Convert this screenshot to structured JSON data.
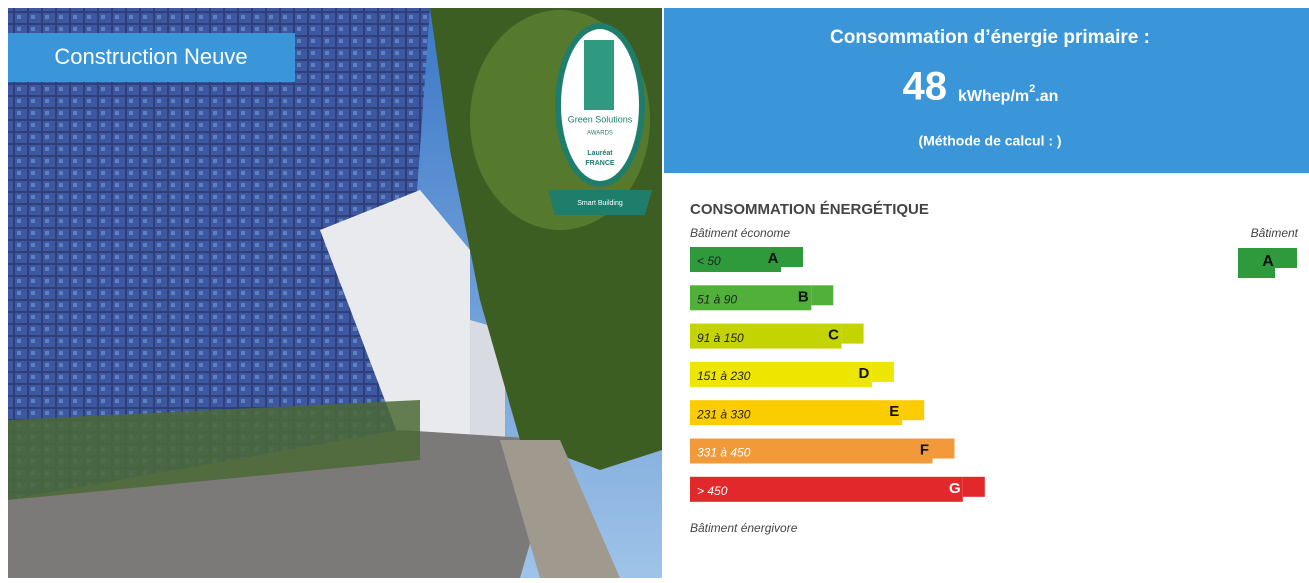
{
  "photo": {
    "badge": "Construction Neuve",
    "award": {
      "line1": "Green Solutions",
      "line2": "AWARDS",
      "line3": "Lauréat",
      "line4": "FRANCE",
      "ribbon": "Smart Building"
    }
  },
  "header": {
    "title": "Consommation d’énergie primaire :",
    "value": 48,
    "unit": "kWhep/m",
    "unit_sup": "2",
    "unit_suffix": ".an",
    "method": "(Méthode de calcul : )"
  },
  "label": {
    "title": "CONSOMMATION ÉNERGÉTIQUE",
    "top_left": "Bâtiment économe",
    "top_right": "Bâtiment",
    "bottom": "Bâtiment énergivore",
    "classes": [
      {
        "range": "< 50",
        "letter": "A",
        "color": "#2f9a3b"
      },
      {
        "range": "51 à 90",
        "letter": "B",
        "color": "#50b03a"
      },
      {
        "range": "91 à 150",
        "letter": "C",
        "color": "#c4d400"
      },
      {
        "range": "151 à 230",
        "letter": "D",
        "color": "#ede600"
      },
      {
        "range": "231 à 330",
        "letter": "E",
        "color": "#fbcc00"
      },
      {
        "range": "331 à 450",
        "letter": "F",
        "color": "#f29a3a"
      },
      {
        "range": "> 450",
        "letter": "G",
        "color": "#e2282a"
      }
    ],
    "building_class": "A",
    "building_color": "#2f9a3b"
  }
}
